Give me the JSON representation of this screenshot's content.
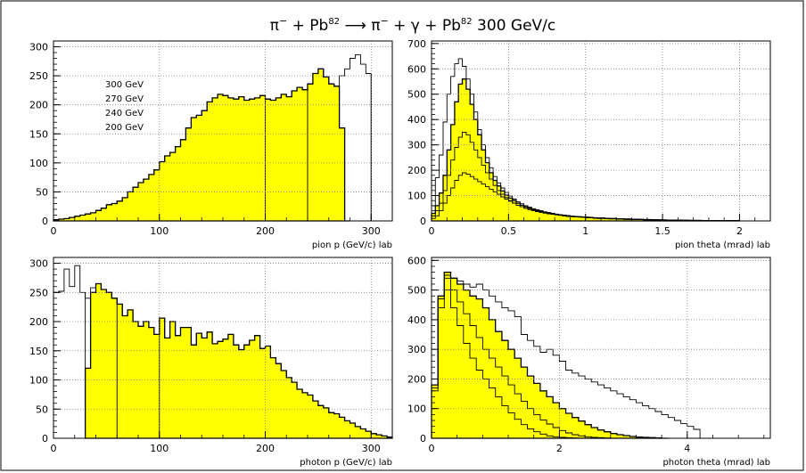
{
  "title": {
    "pi1": "π",
    "sup1": "−",
    "plus1": " + Pb",
    "sup2": "82",
    "arrow": " ⟶ ",
    "pi2": "π",
    "sup3": "−",
    "plus2": " + γ + Pb",
    "sup4": "82",
    "energy": " 300 GeV/c"
  },
  "colors": {
    "fill": "#ffff00",
    "line": "#000000",
    "grid": "#7f7f7f",
    "frame": "#000000"
  },
  "chart_data": [
    {
      "type": "histogram",
      "xlabel": "pion p (GeV/c) lab",
      "xlim": [
        0,
        320
      ],
      "ylim": [
        0,
        310
      ],
      "xticks": [
        0,
        100,
        200,
        300
      ],
      "yticks": [
        0,
        50,
        100,
        150,
        200,
        250,
        300
      ],
      "grid": true,
      "legend": [
        "300 GeV",
        "270 GeV",
        "240 GeV",
        "200 GeV"
      ],
      "bin_width": 5,
      "series": [
        {
          "name": "270 GeV",
          "x0": 0,
          "values": [
            2,
            3,
            4,
            6,
            8,
            10,
            12,
            14,
            18,
            22,
            28,
            30,
            34,
            40,
            50,
            58,
            66,
            72,
            80,
            88,
            102,
            112,
            118,
            128,
            140,
            160,
            178,
            182,
            190,
            205,
            212,
            218,
            216,
            212,
            210,
            214,
            208,
            210,
            212,
            216,
            210,
            208,
            212,
            218,
            214,
            224,
            230,
            226,
            236,
            254,
            262,
            248,
            236,
            232,
            160,
            0
          ],
          "filled": true
        },
        {
          "name": "300 GeV",
          "x0": 0,
          "values": [
            2,
            3,
            4,
            6,
            8,
            10,
            12,
            14,
            18,
            22,
            28,
            30,
            34,
            40,
            50,
            58,
            66,
            72,
            80,
            88,
            102,
            112,
            118,
            128,
            140,
            160,
            178,
            182,
            190,
            205,
            212,
            218,
            216,
            212,
            210,
            214,
            208,
            210,
            212,
            216,
            210,
            208,
            212,
            218,
            214,
            224,
            230,
            226,
            236,
            254,
            262,
            248,
            236,
            232,
            250,
            262,
            280,
            286,
            270,
            254,
            0
          ],
          "filled": false
        }
      ],
      "dividers": [
        200,
        240,
        300
      ]
    },
    {
      "type": "histogram",
      "xlabel": "pion theta (mrad) lab",
      "xlim": [
        0,
        2.2
      ],
      "ylim": [
        0,
        710
      ],
      "xticks": [
        0,
        0.5,
        1,
        1.5,
        2
      ],
      "xticklabels": [
        "0",
        "0.5",
        "1",
        "1.5",
        "2"
      ],
      "yticks": [
        0,
        100,
        200,
        300,
        400,
        500,
        600,
        700
      ],
      "grid": true,
      "bin_width": 0.025,
      "series": [
        {
          "name": "300 GeV",
          "filled": false,
          "values": [
            60,
            170,
            260,
            390,
            500,
            570,
            620,
            640,
            610,
            560,
            500,
            430,
            360,
            300,
            250,
            210,
            175,
            150,
            130,
            112,
            98,
            86,
            76,
            68,
            60,
            54,
            48,
            44,
            40,
            36,
            33,
            30,
            27,
            25,
            23,
            21,
            19,
            18,
            17,
            16,
            15,
            14,
            13,
            12,
            12,
            11,
            10,
            10,
            9,
            9,
            8,
            8,
            7,
            7,
            6,
            6,
            6,
            5,
            5,
            5,
            4,
            4,
            4,
            3,
            3,
            3,
            3,
            2,
            2,
            2,
            2,
            2,
            1,
            1,
            1,
            1,
            1,
            1,
            1,
            1
          ]
        },
        {
          "name": "270 GeV",
          "filled": true,
          "values": [
            30,
            60,
            110,
            180,
            280,
            380,
            470,
            540,
            560,
            520,
            460,
            400,
            340,
            280,
            230,
            190,
            160,
            138,
            118,
            102,
            90,
            80,
            70,
            62,
            56,
            50,
            45,
            41,
            37,
            34,
            31,
            28,
            26,
            24,
            22,
            20,
            18,
            17,
            16,
            15,
            14,
            13,
            12,
            11,
            11,
            10,
            9,
            9,
            8,
            8,
            7,
            7,
            6,
            6,
            6,
            5,
            5,
            5,
            4,
            4,
            4,
            3,
            3,
            3,
            3,
            2,
            2,
            2,
            2,
            2,
            1,
            1,
            1,
            1,
            1,
            1,
            1,
            1,
            1,
            1
          ]
        },
        {
          "name": "240 GeV",
          "filled": false,
          "values": [
            20,
            40,
            70,
            120,
            180,
            240,
            290,
            330,
            350,
            340,
            310,
            280,
            250,
            220,
            190,
            165,
            140,
            120,
            105,
            92,
            80,
            70,
            62,
            56,
            50,
            45,
            41,
            37,
            34,
            31,
            28,
            26,
            24,
            22,
            20,
            18,
            17,
            16,
            15,
            14,
            13,
            12,
            11,
            10,
            10,
            9,
            8,
            8,
            7,
            7,
            6,
            6,
            5,
            5,
            5,
            4,
            4,
            4,
            3,
            3,
            3,
            3,
            2,
            2,
            2,
            2,
            2,
            1,
            1,
            1,
            1,
            1,
            1,
            1,
            1,
            1,
            1,
            1,
            1,
            1
          ]
        },
        {
          "name": "200 GeV",
          "filled": false,
          "values": [
            10,
            20,
            40,
            70,
            100,
            130,
            160,
            180,
            190,
            185,
            175,
            165,
            155,
            145,
            135,
            125,
            115,
            105,
            95,
            86,
            78,
            70,
            62,
            56,
            50,
            45,
            41,
            37,
            34,
            31,
            28,
            26,
            24,
            22,
            20,
            18,
            17,
            16,
            15,
            14,
            13,
            12,
            11,
            10,
            10,
            9,
            8,
            8,
            7,
            7,
            6,
            6,
            5,
            5,
            5,
            4,
            4,
            4,
            3,
            3,
            3,
            3,
            2,
            2,
            2,
            2,
            2,
            1,
            1,
            1,
            1,
            1,
            1,
            1,
            1,
            1,
            1,
            1,
            1,
            1
          ]
        }
      ]
    },
    {
      "type": "histogram",
      "xlabel": "photon p (GeV/c) lab",
      "xlim": [
        0,
        320
      ],
      "ylim": [
        0,
        310
      ],
      "xticks": [
        0,
        100,
        200,
        300
      ],
      "yticks": [
        0,
        50,
        100,
        150,
        200,
        250,
        300
      ],
      "grid": true,
      "bin_width": 5,
      "series": [
        {
          "name": "300 GeV",
          "filled": false,
          "x0": 0,
          "values": [
            250,
            252,
            290,
            260,
            296,
            250,
            240,
            258,
            265,
            255,
            250,
            240,
            230,
            210,
            220,
            200,
            192,
            200,
            190,
            178,
            206,
            172,
            200,
            176,
            190,
            190,
            160,
            180,
            172,
            182,
            162,
            166,
            170,
            178,
            160,
            152,
            160,
            168,
            176,
            154,
            158,
            138,
            128,
            116,
            104,
            96,
            84,
            78,
            74,
            64,
            56,
            52,
            44,
            42,
            36,
            30,
            26,
            20,
            16,
            12,
            8,
            6,
            4,
            2,
            0
          ]
        },
        {
          "name": "270 GeV",
          "filled": true,
          "x0": 30,
          "values": [
            120,
            250,
            265,
            255,
            250,
            240,
            230,
            210,
            220,
            200,
            192,
            200,
            190,
            178,
            206,
            172,
            200,
            176,
            190,
            190,
            160,
            180,
            172,
            182,
            162,
            166,
            170,
            178,
            160,
            152,
            160,
            168,
            176,
            154,
            158,
            138,
            128,
            116,
            104,
            96,
            84,
            78,
            74,
            64,
            56,
            52,
            44,
            42,
            36,
            30,
            26,
            20,
            16,
            12,
            8,
            6,
            4,
            2,
            0
          ]
        }
      ],
      "dividers": [
        30,
        60,
        100
      ]
    },
    {
      "type": "histogram",
      "xlabel": "photon theta (mrad) lab",
      "xlim": [
        0,
        5.3
      ],
      "ylim": [
        0,
        610
      ],
      "xticks": [
        0,
        2,
        4
      ],
      "xticklabels": [
        "0",
        "2",
        "4"
      ],
      "yticks": [
        0,
        100,
        200,
        300,
        400,
        500,
        600
      ],
      "grid": true,
      "bin_width": 0.1,
      "series": [
        {
          "name": "300 GeV",
          "filled": false,
          "values": [
            180,
            470,
            550,
            540,
            530,
            520,
            510,
            520,
            500,
            480,
            460,
            440,
            430,
            410,
            350,
            330,
            310,
            290,
            300,
            280,
            260,
            230,
            220,
            210,
            200,
            190,
            180,
            170,
            160,
            150,
            140,
            130,
            120,
            110,
            100,
            90,
            80,
            70,
            60,
            50,
            40,
            30,
            0
          ]
        },
        {
          "name": "270 GeV",
          "filled": true,
          "values": [
            180,
            480,
            560,
            540,
            520,
            500,
            480,
            470,
            440,
            400,
            360,
            330,
            300,
            270,
            240,
            210,
            185,
            160,
            140,
            120,
            100,
            84,
            70,
            58,
            46,
            36,
            28,
            22,
            16,
            12,
            9,
            6,
            4,
            3,
            2,
            1,
            0
          ]
        },
        {
          "name": "240 GeV",
          "filled": false,
          "values": [
            170,
            470,
            540,
            500,
            460,
            420,
            380,
            340,
            300,
            270,
            240,
            210,
            180,
            150,
            125,
            100,
            80,
            62,
            48,
            36,
            26,
            18,
            12,
            8,
            5,
            3,
            2,
            1,
            0
          ]
        },
        {
          "name": "200 GeV",
          "filled": false,
          "values": [
            160,
            440,
            500,
            440,
            380,
            320,
            270,
            230,
            200,
            170,
            140,
            110,
            86,
            64,
            46,
            32,
            22,
            14,
            8,
            5,
            3,
            2,
            1,
            0
          ]
        }
      ]
    }
  ]
}
